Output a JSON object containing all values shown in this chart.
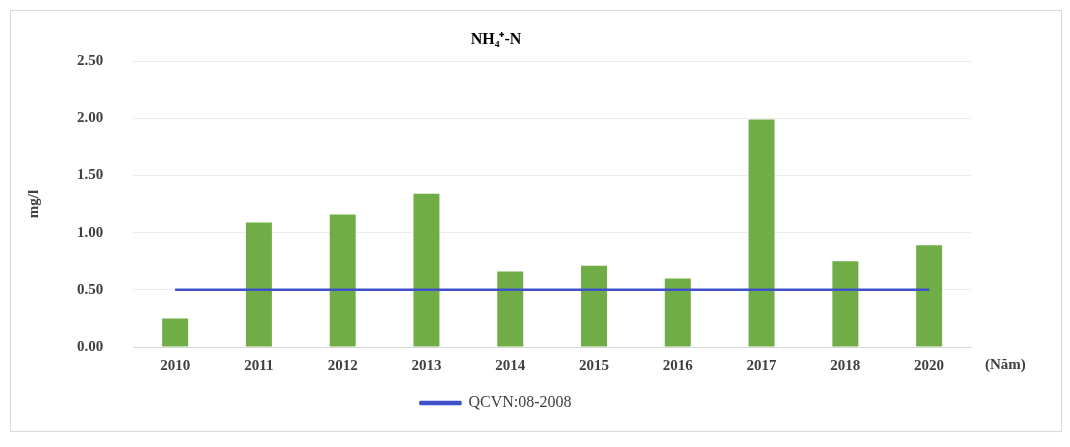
{
  "chart_data": {
    "type": "bar",
    "title": "NH₄⁺-N",
    "xlabel": "(Năm)",
    "ylabel": "mg/l",
    "categories": [
      "2010",
      "2011",
      "2012",
      "2013",
      "2014",
      "2015",
      "2016",
      "2017",
      "2018",
      "2020"
    ],
    "series": [
      {
        "color": "#70ad47",
        "values": [
          0.25,
          1.09,
          1.16,
          1.34,
          0.66,
          0.71,
          0.6,
          1.99,
          0.75,
          0.89
        ]
      },
      {
        "type": "line",
        "name": "QCVN:08-2008",
        "color": "#3f51c8",
        "values": [
          0.5,
          0.5,
          0.5,
          0.5,
          0.5,
          0.5,
          0.5,
          0.5,
          0.5,
          0.5
        ]
      }
    ],
    "ylim": [
      0,
      2.5
    ],
    "yticks": [
      {
        "value": 0,
        "label": "0.00"
      },
      {
        "value": 0.5,
        "label": "0.50"
      },
      {
        "value": 1,
        "label": "1.00"
      },
      {
        "value": 1.5,
        "label": "1.50"
      },
      {
        "value": 2,
        "label": "2.00"
      },
      {
        "value": 2.5,
        "label": "2.50"
      }
    ],
    "grid": "y",
    "legend": "bottom",
    "marker": "none"
  }
}
